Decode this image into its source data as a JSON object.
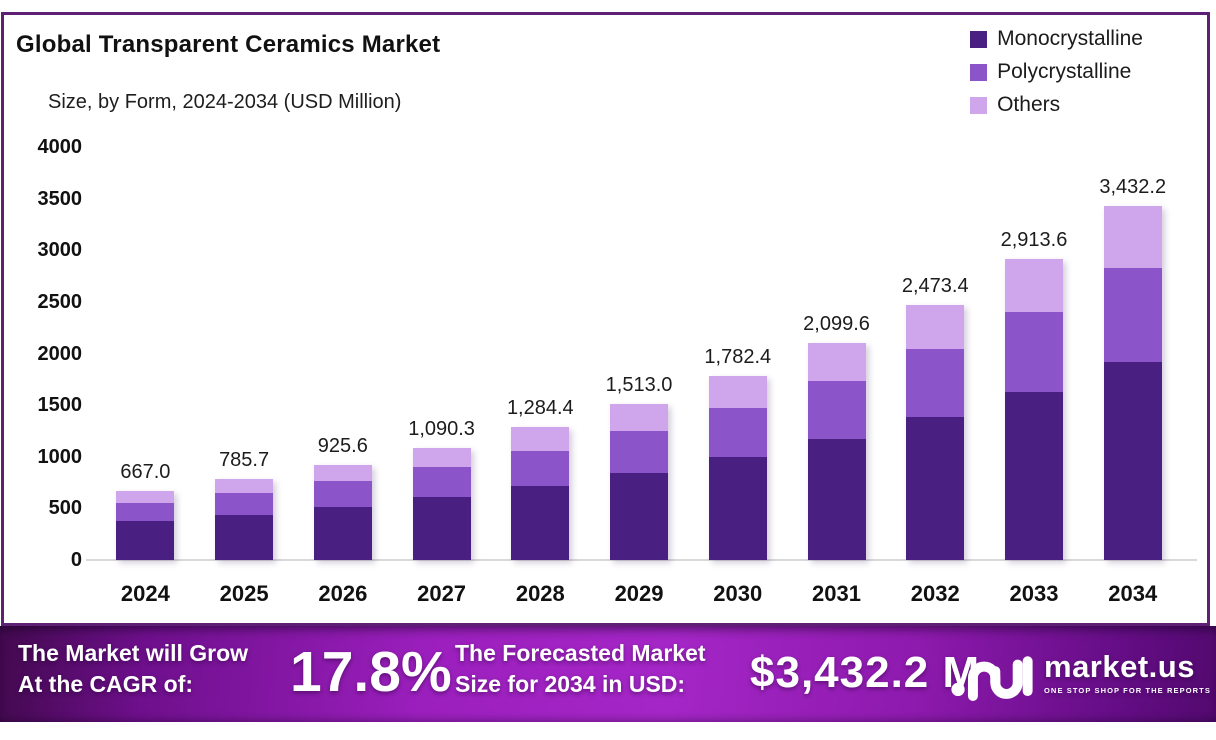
{
  "header": {
    "title": "Global Transparent Ceramics Market",
    "subtitle": "Size, by Form, 2024-2034 (USD Million)"
  },
  "legend": [
    {
      "label": "Monocrystalline",
      "color": "#4A1F82"
    },
    {
      "label": "Polycrystalline",
      "color": "#8B54C9"
    },
    {
      "label": "Others",
      "color": "#CFA6EC"
    }
  ],
  "chart_data": {
    "type": "bar",
    "stacked": true,
    "title": "Global Transparent Ceramics Market",
    "subtitle": "Size, by Form, 2024-2034 (USD Million)",
    "xlabel": "",
    "ylabel": "",
    "ylim": [
      0,
      4000
    ],
    "yticks": [
      0,
      500,
      1000,
      1500,
      2000,
      2500,
      3000,
      3500,
      4000
    ],
    "grid": false,
    "legend_position": "top-right",
    "categories": [
      "2024",
      "2025",
      "2026",
      "2027",
      "2028",
      "2029",
      "2030",
      "2031",
      "2032",
      "2033",
      "2034"
    ],
    "series": [
      {
        "name": "Monocrystalline",
        "color": "#4A1F82",
        "values": [
          373.5,
          440.0,
          518.3,
          610.6,
          719.3,
          847.3,
          998.1,
          1175.8,
          1385.1,
          1631.6,
          1922.0
        ]
      },
      {
        "name": "Polycrystalline",
        "color": "#8B54C9",
        "values": [
          176.8,
          208.2,
          245.3,
          288.9,
          340.4,
          400.9,
          472.3,
          556.4,
          655.5,
          772.1,
          909.5
        ]
      },
      {
        "name": "Others",
        "color": "#CFA6EC",
        "values": [
          116.7,
          137.5,
          162.0,
          190.8,
          224.7,
          264.8,
          312.0,
          367.4,
          432.8,
          509.9,
          600.7
        ]
      }
    ],
    "totals": [
      667.0,
      785.7,
      925.6,
      1090.3,
      1284.4,
      1513.0,
      1782.4,
      2099.6,
      2473.4,
      2913.6,
      3432.2
    ],
    "total_labels": [
      "667.0",
      "785.7",
      "925.6",
      "1,090.3",
      "1,284.4",
      "1,513.0",
      "1,782.4",
      "2,099.6",
      "2,473.4",
      "2,913.6",
      "3,432.2"
    ]
  },
  "banner": {
    "cagr_label_line1": "The Market will Grow",
    "cagr_label_line2": "At the CAGR of:",
    "cagr_value": "17.8%",
    "forecast_label_line1": "The Forecasted Market",
    "forecast_label_line2": "Size for 2034 in USD:",
    "forecast_value": "$3,432.2 M",
    "brand_name": "market.us",
    "brand_tagline": "ONE STOP SHOP FOR THE REPORTS"
  },
  "colors": {
    "frame_border": "#5E2074",
    "axis_line": "#d9d9d9",
    "banner_gradient_start": "#42094E",
    "banner_gradient_mid": "#A426C6",
    "banner_gradient_end": "#52096E"
  }
}
